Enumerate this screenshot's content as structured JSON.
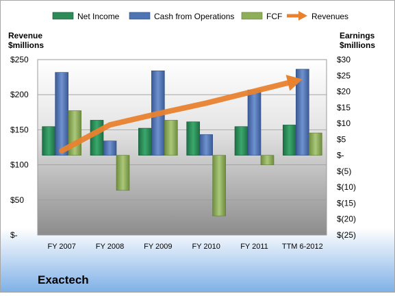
{
  "chart_data": {
    "type": "bar",
    "categories": [
      "FY 2007",
      "FY 2008",
      "FY 2009",
      "FY 2010",
      "FY 2011",
      "TTM 6-2012"
    ],
    "series": [
      {
        "name": "Net Income",
        "axis": "right",
        "values": [
          9,
          11,
          8.5,
          10.5,
          9,
          9.5
        ]
      },
      {
        "name": "Cash from Operations",
        "axis": "right",
        "values": [
          26,
          4.5,
          26.5,
          6.5,
          20.5,
          27
        ]
      },
      {
        "name": "FCF",
        "axis": "right",
        "values": [
          14,
          -11,
          11,
          -19,
          -3,
          7
        ]
      },
      {
        "name": "Revenues",
        "axis": "left",
        "type": "line",
        "values": [
          120,
          157,
          173,
          188,
          205,
          222
        ]
      }
    ],
    "left_axis": {
      "label_line1": "Revenue",
      "label_line2": "$millions",
      "range": [
        0,
        250
      ],
      "tick_values": [
        0,
        50,
        100,
        150,
        200,
        250
      ],
      "tick_labels": [
        "$-",
        "$50",
        "$100",
        "$150",
        "$200",
        "$250"
      ]
    },
    "right_axis": {
      "label_line1": "Earnings",
      "label_line2": "$millions",
      "range": [
        -25,
        30
      ],
      "tick_values": [
        30,
        25,
        20,
        15,
        10,
        5,
        0,
        -5,
        -10,
        -15,
        -20,
        -25
      ],
      "tick_labels": [
        "$30",
        "$25",
        "$20",
        "$15",
        "$10",
        "$5",
        "$-",
        "$(5)",
        "$(10)",
        "$(15)",
        "$(20)",
        "$(25)"
      ]
    },
    "title": "Exactech",
    "legend": [
      "Net Income",
      "Cash from Operations",
      "FCF",
      "Revenues"
    ],
    "legend_position": "top",
    "grid": true,
    "colors": {
      "net_income": "#2e8b57",
      "cash_from_operations": "#4f74b3",
      "fcf": "#8fae5a",
      "revenues": "#e8822f"
    }
  }
}
